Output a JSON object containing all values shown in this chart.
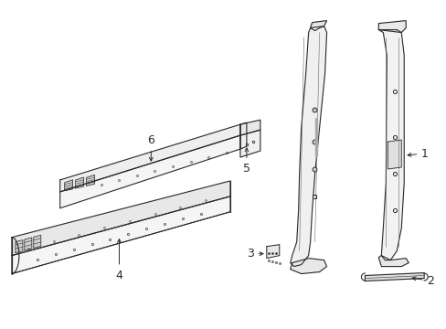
{
  "background_color": "#ffffff",
  "line_color": "#2a2a2a",
  "label_color": "#111111",
  "fig_width": 4.89,
  "fig_height": 3.6,
  "dpi": 100
}
